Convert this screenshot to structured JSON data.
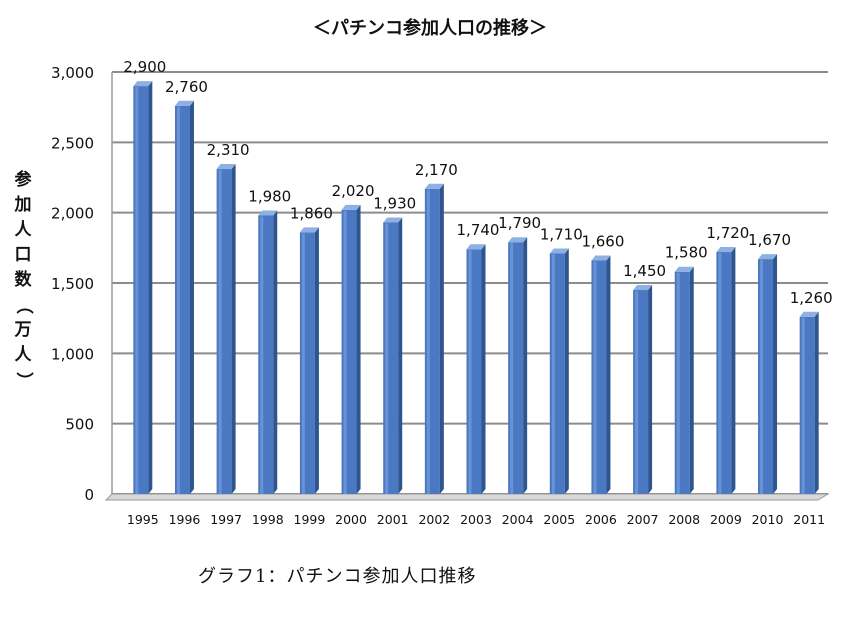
{
  "chart_data": {
    "type": "bar",
    "title": "＜パチンコ参加人口の推移＞",
    "ylabel": "参加人口数（万人）",
    "xlabel": "",
    "categories": [
      "1995",
      "1996",
      "1997",
      "1998",
      "1999",
      "2000",
      "2001",
      "2002",
      "2003",
      "2004",
      "2005",
      "2006",
      "2007",
      "2008",
      "2009",
      "2010",
      "2011"
    ],
    "values": [
      2900,
      2760,
      2310,
      1980,
      1860,
      2020,
      1930,
      2170,
      1740,
      1790,
      1710,
      1660,
      1450,
      1580,
      1720,
      1670,
      1260
    ],
    "value_labels": [
      "2,900",
      "2,760",
      "2,310",
      "1,980",
      "1,860",
      "2,020",
      "1,930",
      "2,170",
      "1,740",
      "1,790",
      "1,710",
      "1,660",
      "1,450",
      "1,580",
      "1,720",
      "1,670",
      "1,260"
    ],
    "ylim": [
      0,
      3000
    ],
    "yticks": [
      0,
      500,
      1000,
      1500,
      2000,
      2500,
      3000
    ],
    "ytick_labels": [
      "0",
      "500",
      "1,000",
      "1,500",
      "2,000",
      "2,500",
      "3,000"
    ],
    "grid": true,
    "bar_color": "#4a78c2"
  },
  "caption": "グラフ1：パチンコ参加人口推移"
}
